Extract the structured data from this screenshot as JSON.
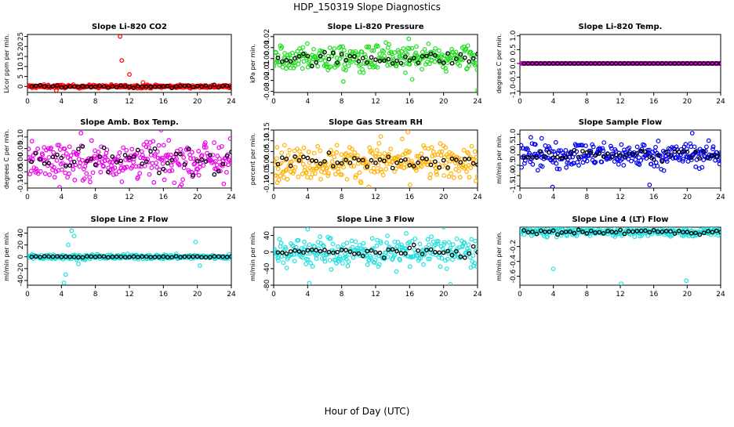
{
  "figure": {
    "title": "HDP_150319  Slope Diagnostics",
    "xlabel": "Hour of Day (UTC)"
  },
  "chart_data": [
    {
      "type": "scatter",
      "title": "Slope Li-820 CO2",
      "ylabel": "Licor ppm per min.",
      "color": "#ff0000",
      "xlim": [
        0,
        24
      ],
      "xticks": [
        0,
        4,
        8,
        12,
        16,
        20,
        24
      ],
      "ylim": [
        -3,
        26
      ],
      "yticks": [
        0,
        5,
        10,
        15,
        20,
        25
      ],
      "ytick_labels": [
        "0",
        "5",
        "10",
        "15",
        "20",
        "25"
      ],
      "n_points": 288,
      "spread": 0.4,
      "black_spread": 0.3,
      "outliers": [
        {
          "x": 10.9,
          "y": 25
        },
        {
          "x": 11.1,
          "y": 13
        },
        {
          "x": 12.0,
          "y": 6
        },
        {
          "x": 13.6,
          "y": 2
        },
        {
          "x": 3.4,
          "y": -2
        }
      ]
    },
    {
      "type": "scatter",
      "title": "Slope Li-820 Pressure",
      "ylabel": "kPa per min.",
      "color": "#22dd22",
      "xlim": [
        0,
        24
      ],
      "xticks": [
        0,
        4,
        8,
        12,
        16,
        20,
        24
      ],
      "ylim": [
        -0.031,
        0.022
      ],
      "yticks": [
        -0.03,
        -0.02,
        -0.01,
        0.0,
        0.01,
        0.02
      ],
      "ytick_labels": [
        "-0.03",
        "-0.02",
        "-0.01",
        "0.00",
        "0.01",
        "0.02"
      ],
      "n_points": 288,
      "spread": 0.006,
      "black_spread": 0.003,
      "outliers": [
        {
          "x": 15.9,
          "y": 0.018
        },
        {
          "x": 16.8,
          "y": 0.011
        },
        {
          "x": 8.2,
          "y": -0.021
        },
        {
          "x": 15.5,
          "y": -0.013
        },
        {
          "x": 16.3,
          "y": -0.019
        },
        {
          "x": 24.0,
          "y": -0.029
        }
      ]
    },
    {
      "type": "scatter",
      "title": "Slope Li-820 Temp.",
      "ylabel": "degrees C per min.",
      "color": "#dd00dd",
      "xlim": [
        0,
        24
      ],
      "xticks": [
        0,
        4,
        8,
        12,
        16,
        20,
        24
      ],
      "ylim": [
        -1.05,
        1.05
      ],
      "yticks": [
        -1.0,
        -0.5,
        0.0,
        0.5,
        1.0
      ],
      "ytick_labels": [
        "-1.0",
        "-0.5",
        "0.0",
        "0.5",
        "1.0"
      ],
      "n_points": 288,
      "spread": 0.0,
      "black_spread": 0.0,
      "outliers": []
    },
    {
      "type": "scatter",
      "title": "Slope Amb. Box Temp.",
      "ylabel": "degrees C per min.",
      "color": "#ee00ee",
      "xlim": [
        0,
        24
      ],
      "xticks": [
        0,
        4,
        8,
        12,
        16,
        20,
        24
      ],
      "ylim": [
        -0.12,
        0.13
      ],
      "yticks": [
        -0.1,
        -0.05,
        0.0,
        0.05,
        0.1
      ],
      "ytick_labels": [
        "-0.10",
        "-0.05",
        "0.00",
        "0.05",
        "0.10"
      ],
      "n_points": 288,
      "spread": 0.045,
      "black_spread": 0.03,
      "outliers": []
    },
    {
      "type": "scatter",
      "title": "Slope Gas Stream RH",
      "ylabel": "percent per min.",
      "color": "#ffb000",
      "xlim": [
        0,
        24
      ],
      "xticks": [
        0,
        4,
        8,
        12,
        16,
        20,
        24
      ],
      "ylim": [
        -0.12,
        0.15
      ],
      "yticks": [
        -0.1,
        -0.05,
        0.0,
        0.05,
        0.1,
        0.15
      ],
      "ytick_labels": [
        "-0.10",
        "-0.05",
        "0.00",
        "0.05",
        "0.10",
        "0.15"
      ],
      "n_points": 288,
      "spread": 0.04,
      "black_spread": 0.02,
      "outliers": [
        {
          "x": 15.8,
          "y": 0.14
        },
        {
          "x": 12.6,
          "y": 0.12
        },
        {
          "x": 0.4,
          "y": 0.07
        }
      ]
    },
    {
      "type": "scatter",
      "title": "Slope Sample Flow",
      "ylabel": "ml/min per min.",
      "color": "#0000ee",
      "xlim": [
        0,
        24
      ],
      "xticks": [
        0,
        4,
        8,
        12,
        16,
        20,
        24
      ],
      "ylim": [
        -1.6,
        1.2
      ],
      "yticks": [
        -1.5,
        -1.0,
        -0.5,
        0.0,
        0.5,
        1.0
      ],
      "ytick_labels": [
        "-1.5",
        "-1.0",
        "-0.5",
        "0.0",
        "0.5",
        "1.0"
      ],
      "n_points": 288,
      "spread": 0.3,
      "black_spread": 0.15,
      "outliers": [
        {
          "x": 3.9,
          "y": -1.55
        },
        {
          "x": 15.5,
          "y": -1.45
        },
        {
          "x": 20.6,
          "y": 1.05
        },
        {
          "x": 2.6,
          "y": 0.8
        }
      ]
    },
    {
      "type": "scatter",
      "title": "Slope Line 2 Flow",
      "ylabel": "ml/min per min.",
      "color": "#22e0e0",
      "xlim": [
        0,
        24
      ],
      "xticks": [
        0,
        4,
        8,
        12,
        16,
        20,
        24
      ],
      "ylim": [
        -48,
        50
      ],
      "yticks": [
        -40,
        -20,
        0,
        20,
        40
      ],
      "ytick_labels": [
        "-40",
        "-20",
        "0",
        "20",
        "40"
      ],
      "n_points": 288,
      "spread": 2,
      "black_spread": 0.5,
      "outliers": [
        {
          "x": 5.2,
          "y": 44
        },
        {
          "x": 5.5,
          "y": 35
        },
        {
          "x": 4.3,
          "y": -44
        },
        {
          "x": 4.5,
          "y": -30
        },
        {
          "x": 4.8,
          "y": 20
        },
        {
          "x": 6.0,
          "y": -12
        },
        {
          "x": 19.8,
          "y": 25
        },
        {
          "x": 20.3,
          "y": -15
        }
      ]
    },
    {
      "type": "scatter",
      "title": "Slope Line 3 Flow",
      "ylabel": "ml/min per min.",
      "color": "#22e0e0",
      "xlim": [
        0,
        24
      ],
      "xticks": [
        0,
        4,
        8,
        12,
        16,
        20,
        24
      ],
      "ylim": [
        -80,
        60
      ],
      "yticks": [
        -80,
        -40,
        0,
        40
      ],
      "ytick_labels": [
        "-80",
        "-40",
        "0",
        "40"
      ],
      "n_points": 288,
      "spread": 18,
      "black_spread": 6,
      "outliers": [
        {
          "x": 4.0,
          "y": 55
        },
        {
          "x": 20.0,
          "y": 60
        },
        {
          "x": 4.2,
          "y": -75
        },
        {
          "x": 20.8,
          "y": -78
        },
        {
          "x": 15.6,
          "y": 45
        }
      ]
    },
    {
      "type": "scatter",
      "title": "Slope Line 4 (LT) Flow",
      "ylabel": "ml/min per min.",
      "color": "#22e0e0",
      "xlim": [
        0,
        24
      ],
      "xticks": [
        0,
        4,
        8,
        12,
        16,
        20,
        24
      ],
      "ylim": [
        -0.72,
        0.06
      ],
      "yticks": [
        -0.6,
        -0.4,
        -0.2
      ],
      "ytick_labels": [
        "-0.6",
        "-0.4",
        "-0.2"
      ],
      "n_points": 288,
      "spread": 0.03,
      "black_spread": 0.02,
      "outliers": [
        {
          "x": 4.0,
          "y": -0.5
        },
        {
          "x": 12.1,
          "y": -0.7
        },
        {
          "x": 19.9,
          "y": -0.66
        }
      ]
    }
  ]
}
